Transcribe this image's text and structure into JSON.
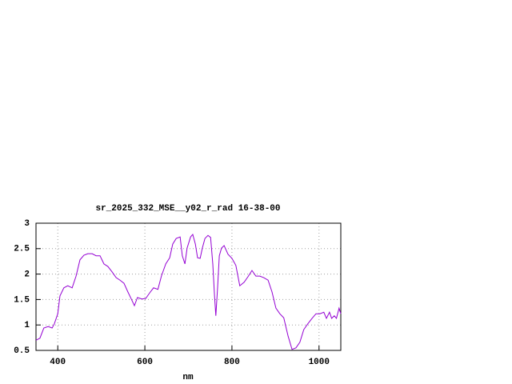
{
  "chart_data": {
    "type": "line",
    "title": "sr_2025_332_MSE__y02_r_rad 16-38-00",
    "xlabel": "nm",
    "x": [
      350,
      359,
      368,
      378,
      387,
      392,
      400,
      405,
      414,
      423,
      433,
      442,
      451,
      460,
      469,
      479,
      488,
      497,
      506,
      515,
      525,
      534,
      543,
      552,
      561,
      570,
      576,
      583,
      593,
      602,
      611,
      620,
      630,
      638,
      648,
      657,
      664,
      672,
      681,
      686,
      692,
      697,
      705,
      710,
      716,
      721,
      727,
      732,
      738,
      745,
      751,
      756,
      760,
      763,
      767,
      771,
      776,
      782,
      791,
      800,
      809,
      818,
      828,
      837,
      846,
      855,
      864,
      873,
      883,
      892,
      901,
      910,
      919,
      929,
      938,
      947,
      956,
      965,
      974,
      984,
      993,
      1002,
      1011,
      1017,
      1024,
      1029,
      1035,
      1040,
      1046,
      1050
    ],
    "series": [
      {
        "name": "sr_2025_332_MSE__y02_r_rad 16-38-00",
        "color": "#9400d3",
        "values": [
          0.7,
          0.74,
          0.94,
          0.97,
          0.94,
          1.02,
          1.22,
          1.57,
          1.73,
          1.77,
          1.73,
          1.96,
          2.28,
          2.37,
          2.4,
          2.4,
          2.36,
          2.36,
          2.2,
          2.15,
          2.04,
          1.93,
          1.88,
          1.82,
          1.65,
          1.49,
          1.38,
          1.54,
          1.51,
          1.52,
          1.63,
          1.73,
          1.7,
          1.96,
          2.2,
          2.32,
          2.59,
          2.7,
          2.73,
          2.36,
          2.2,
          2.51,
          2.73,
          2.78,
          2.59,
          2.32,
          2.31,
          2.51,
          2.7,
          2.76,
          2.72,
          2.2,
          1.57,
          1.18,
          1.73,
          2.36,
          2.51,
          2.56,
          2.39,
          2.31,
          2.17,
          1.77,
          1.84,
          1.95,
          2.07,
          1.96,
          1.96,
          1.93,
          1.88,
          1.65,
          1.33,
          1.22,
          1.14,
          0.78,
          0.52,
          0.55,
          0.66,
          0.91,
          1.02,
          1.13,
          1.22,
          1.22,
          1.25,
          1.13,
          1.25,
          1.13,
          1.18,
          1.13,
          1.33,
          1.22
        ]
      }
    ],
    "xlim": [
      350,
      1050
    ],
    "xticks": [
      400,
      600,
      800,
      1000
    ],
    "ylim": [
      0.5,
      3
    ],
    "yticks": [
      0.5,
      1,
      1.5,
      2,
      2.5,
      3
    ],
    "grid": true
  }
}
